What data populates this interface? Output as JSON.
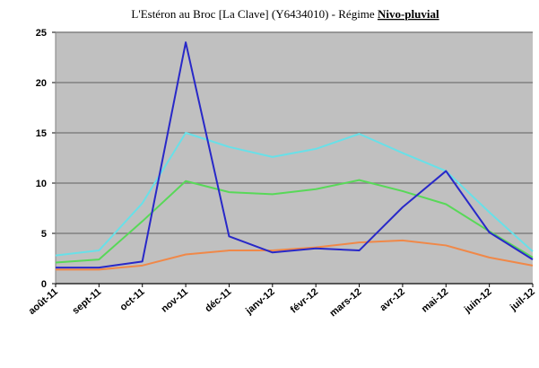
{
  "chart_data": {
    "type": "line",
    "title": "L'Estéron au Broc [La Clave] (Y6434010) - Régime",
    "title_emphasis": "Nivo-pluvial",
    "categories": [
      "août-11",
      "sept-11",
      "oct-11",
      "nov-11",
      "déc-11",
      "janv-12",
      "févr-12",
      "mars-12",
      "avr-12",
      "mai-12",
      "juin-12",
      "juil-12"
    ],
    "series": [
      {
        "color": "#f08848",
        "values": [
          1.4,
          1.4,
          1.8,
          2.9,
          3.3,
          3.3,
          3.6,
          4.1,
          4.3,
          3.8,
          2.6,
          1.8
        ]
      },
      {
        "color": "#58d858",
        "values": [
          2.1,
          2.4,
          6.2,
          10.2,
          9.1,
          8.9,
          9.4,
          10.3,
          9.2,
          7.9,
          5.2,
          2.6
        ]
      },
      {
        "color": "#68e0e8",
        "values": [
          2.8,
          3.3,
          8,
          15,
          13.6,
          12.6,
          13.4,
          14.9,
          13,
          11.2,
          7.1,
          3.2
        ]
      },
      {
        "color": "#2828c8",
        "values": [
          1.6,
          1.6,
          2.2,
          24,
          4.7,
          3.1,
          3.5,
          3.3,
          7.6,
          11.2,
          5.1,
          2.4
        ]
      }
    ],
    "ylim": [
      0,
      25
    ],
    "yticks": [
      0,
      5,
      10,
      15,
      20,
      25
    ],
    "grid": true,
    "plot_background": "#c0c0c0"
  }
}
